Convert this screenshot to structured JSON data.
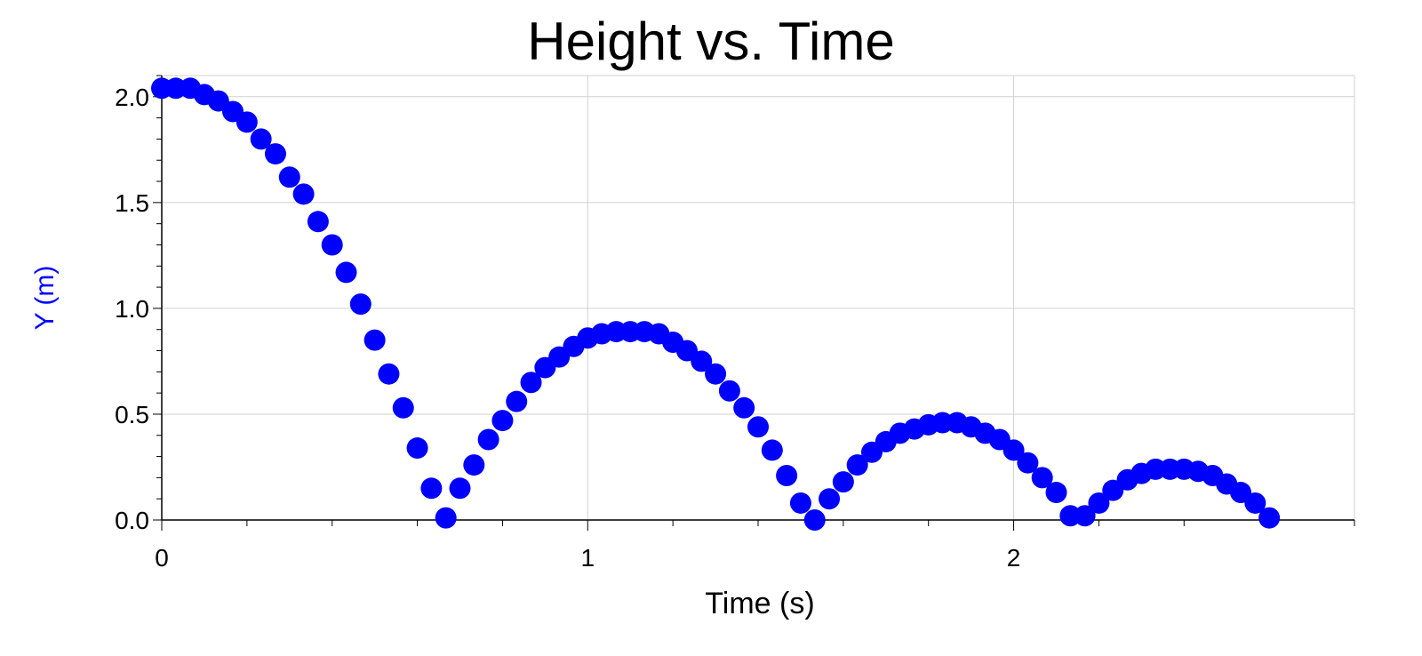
{
  "colors": {
    "series": "#0000ff",
    "grid": "#d0d0d0",
    "axis": "#000000",
    "ylabel": "#0000ff"
  },
  "chart_data": {
    "type": "scatter",
    "title": "Height vs. Time",
    "xlabel": "Time (s)",
    "ylabel": "Y (m)",
    "xlim": [
      0,
      2.8
    ],
    "ylim": [
      0,
      2.1
    ],
    "x_ticks": [
      0,
      1,
      2
    ],
    "x_tick_labels": [
      "0",
      "1",
      "2"
    ],
    "y_ticks": [
      0,
      0.5,
      1,
      1.5,
      2
    ],
    "y_tick_labels": [
      "0.0",
      "0.5",
      "1.0",
      "1.5",
      "2.0"
    ],
    "grid": true,
    "legend": "none",
    "series": [
      {
        "points": [
          [
            0.0,
            2.04
          ],
          [
            0.033,
            2.04
          ],
          [
            0.067,
            2.04
          ],
          [
            0.1,
            2.01
          ],
          [
            0.133,
            1.98
          ],
          [
            0.167,
            1.93
          ],
          [
            0.2,
            1.88
          ],
          [
            0.233,
            1.8
          ],
          [
            0.267,
            1.73
          ],
          [
            0.3,
            1.62
          ],
          [
            0.333,
            1.54
          ],
          [
            0.367,
            1.41
          ],
          [
            0.4,
            1.3
          ],
          [
            0.433,
            1.17
          ],
          [
            0.467,
            1.02
          ],
          [
            0.5,
            0.85
          ],
          [
            0.533,
            0.69
          ],
          [
            0.567,
            0.53
          ],
          [
            0.6,
            0.34
          ],
          [
            0.633,
            0.15
          ],
          [
            0.667,
            0.01
          ],
          [
            0.7,
            0.15
          ],
          [
            0.733,
            0.26
          ],
          [
            0.767,
            0.38
          ],
          [
            0.8,
            0.47
          ],
          [
            0.833,
            0.56
          ],
          [
            0.867,
            0.65
          ],
          [
            0.9,
            0.72
          ],
          [
            0.933,
            0.77
          ],
          [
            0.967,
            0.82
          ],
          [
            1.0,
            0.86
          ],
          [
            1.033,
            0.88
          ],
          [
            1.067,
            0.89
          ],
          [
            1.1,
            0.89
          ],
          [
            1.133,
            0.89
          ],
          [
            1.167,
            0.88
          ],
          [
            1.2,
            0.84
          ],
          [
            1.233,
            0.8
          ],
          [
            1.267,
            0.75
          ],
          [
            1.3,
            0.69
          ],
          [
            1.333,
            0.61
          ],
          [
            1.367,
            0.53
          ],
          [
            1.4,
            0.44
          ],
          [
            1.433,
            0.33
          ],
          [
            1.467,
            0.21
          ],
          [
            1.5,
            0.08
          ],
          [
            1.533,
            0.0
          ],
          [
            1.567,
            0.1
          ],
          [
            1.6,
            0.18
          ],
          [
            1.633,
            0.26
          ],
          [
            1.667,
            0.32
          ],
          [
            1.7,
            0.37
          ],
          [
            1.733,
            0.41
          ],
          [
            1.767,
            0.43
          ],
          [
            1.8,
            0.45
          ],
          [
            1.833,
            0.46
          ],
          [
            1.867,
            0.46
          ],
          [
            1.9,
            0.44
          ],
          [
            1.933,
            0.41
          ],
          [
            1.967,
            0.38
          ],
          [
            2.0,
            0.33
          ],
          [
            2.033,
            0.27
          ],
          [
            2.067,
            0.2
          ],
          [
            2.1,
            0.13
          ],
          [
            2.133,
            0.02
          ],
          [
            2.167,
            0.02
          ],
          [
            2.2,
            0.08
          ],
          [
            2.233,
            0.14
          ],
          [
            2.267,
            0.19
          ],
          [
            2.3,
            0.22
          ],
          [
            2.333,
            0.24
          ],
          [
            2.367,
            0.24
          ],
          [
            2.4,
            0.24
          ],
          [
            2.433,
            0.23
          ],
          [
            2.467,
            0.21
          ],
          [
            2.5,
            0.17
          ],
          [
            2.533,
            0.13
          ],
          [
            2.567,
            0.08
          ],
          [
            2.6,
            0.01
          ]
        ]
      }
    ]
  }
}
